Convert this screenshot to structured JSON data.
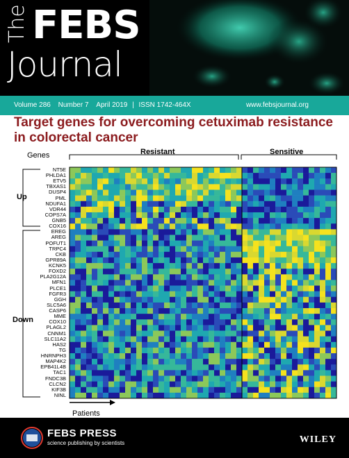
{
  "header": {
    "logo_the": "The",
    "logo_febs": "FEBS",
    "logo_journal": "Journal"
  },
  "infobar": {
    "volume": "Volume 286",
    "number": "Number 7",
    "date": "April 2019",
    "issn": "ISSN 1742-464X",
    "website": "www.febsjournal.org"
  },
  "title": "Target genes for overcoming cetuximab resistance in colorectal cancer",
  "heatmap": {
    "genes_label": "Genes",
    "resistant_label": "Resistant",
    "sensitive_label": "Sensitive",
    "up_label": "Up",
    "down_label": "Down",
    "patients_label": "Patients",
    "up_genes": [
      "NT5E",
      "PHLDA1",
      "ETV5",
      "TBXAS1",
      "DUSP4",
      "PML",
      "NDUFA1",
      "VDR44",
      "COPS7A",
      "GNB5",
      "COX16"
    ],
    "down_genes": [
      "EREG",
      "AREG",
      "POFUT1",
      "TRPC4",
      "CKB",
      "GPR89A",
      "KCNK5",
      "FOXD2",
      "PLA2G12A",
      "MFN1",
      "PLCE1",
      "FGFR3",
      "GGH",
      "SLC5A6",
      "CASP6",
      "MME",
      "COX10",
      "PLAGL2",
      "CNNM1",
      "SLC11A2",
      "HAS2",
      "TG",
      "HNRNPH3",
      "MAP4K2",
      "EPB41L4B",
      "TAC1",
      "FNDC3B",
      "CLCN2",
      "KIF3B",
      "NINL"
    ],
    "colors": {
      "low": "#1a1a9a",
      "mid": "#1fa8b0",
      "high": "#f0e020",
      "border": "#000000"
    }
  },
  "footer": {
    "publisher": "FEBS PRESS",
    "tagline": "science publishing by scientists",
    "wiley": "WILEY"
  }
}
